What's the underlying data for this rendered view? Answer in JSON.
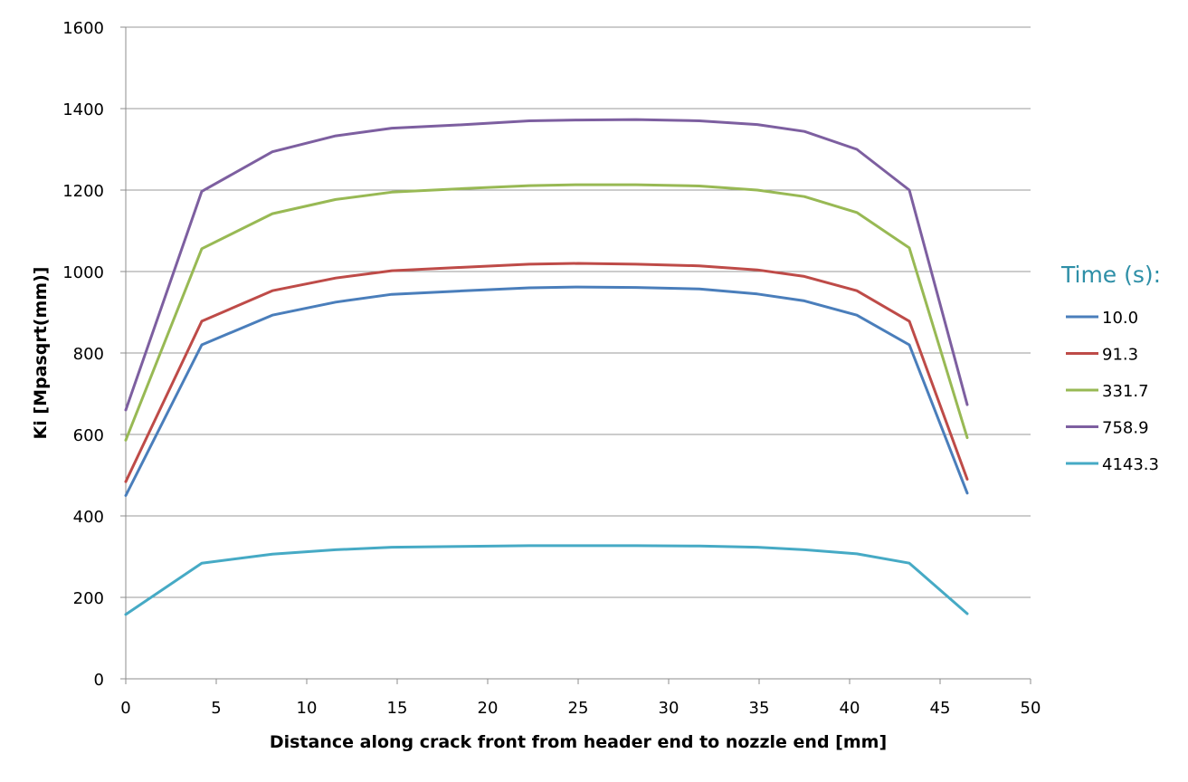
{
  "chart_data": {
    "type": "line",
    "title": "",
    "xlabel": "Distance along crack front from header end to nozzle end [mm]",
    "ylabel": "Ki [Mpasqrt(mm)]",
    "xlim": [
      0,
      50
    ],
    "ylim": [
      0,
      1600
    ],
    "xticks": [
      0,
      5,
      10,
      15,
      20,
      25,
      30,
      35,
      40,
      45,
      50
    ],
    "yticks": [
      0,
      200,
      400,
      600,
      800,
      1000,
      1200,
      1400,
      1600
    ],
    "grid": "horizontal",
    "legend": {
      "title": "Time (s):",
      "title_color": "#2e8fa7",
      "placement": "right"
    },
    "x": [
      0,
      4.2,
      8.1,
      11.6,
      14.7,
      18.4,
      22.3,
      25.0,
      28.2,
      31.7,
      34.9,
      37.5,
      40.4,
      43.3,
      46.5
    ],
    "series": [
      {
        "name": "10.0",
        "color": "#4a7ebb",
        "values": [
          450,
          820,
          893,
          925,
          944,
          952,
          960,
          962,
          961,
          957,
          945,
          928,
          893,
          820,
          456
        ]
      },
      {
        "name": "91.3",
        "color": "#be4b48",
        "values": [
          484,
          878,
          953,
          984,
          1002,
          1010,
          1018,
          1020,
          1018,
          1014,
          1004,
          988,
          953,
          878,
          490
        ]
      },
      {
        "name": "331.7",
        "color": "#98b954",
        "values": [
          586,
          1056,
          1142,
          1177,
          1195,
          1203,
          1211,
          1213,
          1213,
          1210,
          1200,
          1184,
          1145,
          1058,
          592
        ]
      },
      {
        "name": "758.9",
        "color": "#7d5fa0",
        "values": [
          660,
          1197,
          1294,
          1333,
          1352,
          1360,
          1370,
          1372,
          1373,
          1370,
          1361,
          1344,
          1300,
          1200,
          673
        ]
      },
      {
        "name": "4143.3",
        "color": "#46aac5",
        "values": [
          158,
          284,
          306,
          317,
          323,
          325,
          327,
          327,
          327,
          326,
          323,
          317,
          307,
          284,
          160
        ]
      }
    ]
  }
}
